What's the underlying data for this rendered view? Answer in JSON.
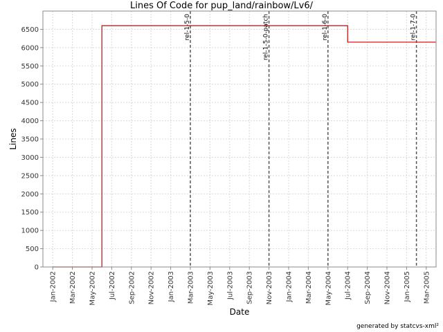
{
  "chart_data": {
    "type": "line",
    "step": true,
    "title": "Lines Of Code for pup_land/rainbow/Lv6/",
    "x_label": "Date",
    "y_label": "Lines",
    "x": [
      "2002-01",
      "2002-06",
      "2004-07",
      "2005-04"
    ],
    "series": [
      {
        "name": "Lines",
        "color": "#cc0000",
        "values": [
          0,
          6600,
          6150,
          6150
        ]
      }
    ],
    "xlim": [
      "2001-12",
      "2005-04"
    ],
    "xticks": [
      {
        "value": "2002-01",
        "label": "Jan-2002"
      },
      {
        "value": "2002-03",
        "label": "Mar-2002"
      },
      {
        "value": "2002-05",
        "label": "May-2002"
      },
      {
        "value": "2002-07",
        "label": "Jul-2002"
      },
      {
        "value": "2002-09",
        "label": "Sep-2002"
      },
      {
        "value": "2002-11",
        "label": "Nov-2002"
      },
      {
        "value": "2003-01",
        "label": "Jan-2003"
      },
      {
        "value": "2003-03",
        "label": "Mar-2003"
      },
      {
        "value": "2003-05",
        "label": "May-2003"
      },
      {
        "value": "2003-07",
        "label": "Jul-2003"
      },
      {
        "value": "2003-09",
        "label": "Sep-2003"
      },
      {
        "value": "2003-11",
        "label": "Nov-2003"
      },
      {
        "value": "2004-01",
        "label": "Jan-2004"
      },
      {
        "value": "2004-03",
        "label": "Mar-2004"
      },
      {
        "value": "2004-05",
        "label": "May-2004"
      },
      {
        "value": "2004-07",
        "label": "Jul-2004"
      },
      {
        "value": "2004-09",
        "label": "Sep-2004"
      },
      {
        "value": "2004-11",
        "label": "Nov-2004"
      },
      {
        "value": "2005-01",
        "label": "Jan-2005"
      },
      {
        "value": "2005-03",
        "label": "Mar-2005"
      }
    ],
    "ylim": [
      0,
      7000
    ],
    "yticks": [
      0,
      500,
      1000,
      1500,
      2000,
      2500,
      3000,
      3500,
      4000,
      4500,
      5000,
      5500,
      6000,
      6500
    ],
    "grid": true,
    "annotations": [
      {
        "label": "rel-1-5-0",
        "x": "2003-03"
      },
      {
        "label": "rel-1-5-0-patch",
        "x": "2003-11"
      },
      {
        "label": "rel-1-6-0",
        "x": "2004-05"
      },
      {
        "label": "rel-1-7-0",
        "x": "2005-02"
      }
    ]
  },
  "footer": "generated by statcvs-xml²"
}
